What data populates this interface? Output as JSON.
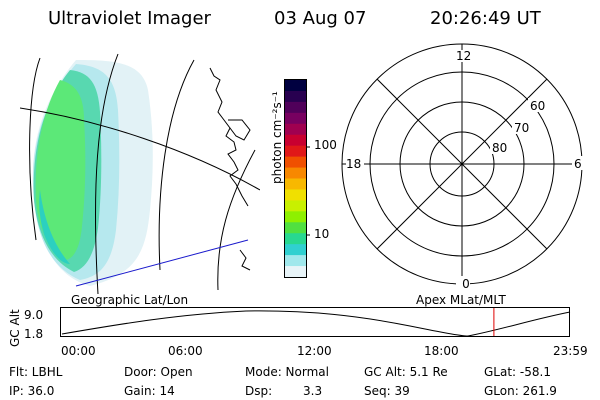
{
  "header": {
    "instrument": "Ultraviolet Imager",
    "date": "03 Aug 07",
    "time": "20:26:49 UT"
  },
  "geo_panel": {
    "label": "Geographic Lat/Lon"
  },
  "apex_panel": {
    "label": "Apex MLat/MLT"
  },
  "colorbar": {
    "label": "photon cm⁻²s⁻¹",
    "ticks": [
      "100",
      "10"
    ],
    "colors": [
      "#000040",
      "#280050",
      "#50005a",
      "#780060",
      "#a00050",
      "#c80030",
      "#e01818",
      "#f05000",
      "#f88800",
      "#f8b800",
      "#f0e000",
      "#c8f000",
      "#8ef000",
      "#50e040",
      "#28d890",
      "#30d0d0",
      "#a0e8ec",
      "#e8f4f8"
    ]
  },
  "polar": {
    "mlt_labels": {
      "top": "12",
      "bottom": "0",
      "left": "18",
      "right": "6"
    },
    "lat_labels": [
      "60",
      "70",
      "80"
    ]
  },
  "timeline": {
    "ylabel": "GC Alt",
    "ytick_max": "9.0",
    "ytick_min": "1.8",
    "xticks": [
      "00:00",
      "06:00",
      "12:00",
      "18:00",
      "23:59"
    ],
    "current_time_hours": 20.45
  },
  "info": {
    "flt": "Flt: LBHL",
    "ip": "IP: 36.0",
    "door": "Door: Open",
    "gain": "Gain: 14",
    "mode": "Mode: Normal",
    "dsp_label": "Dsp:",
    "dsp_value": "3.3",
    "gc_alt": "GC Alt: 5.1 Re",
    "seq": "Seq: 39",
    "glat": "GLat: -58.1",
    "glon": "GLon: 261.9"
  }
}
